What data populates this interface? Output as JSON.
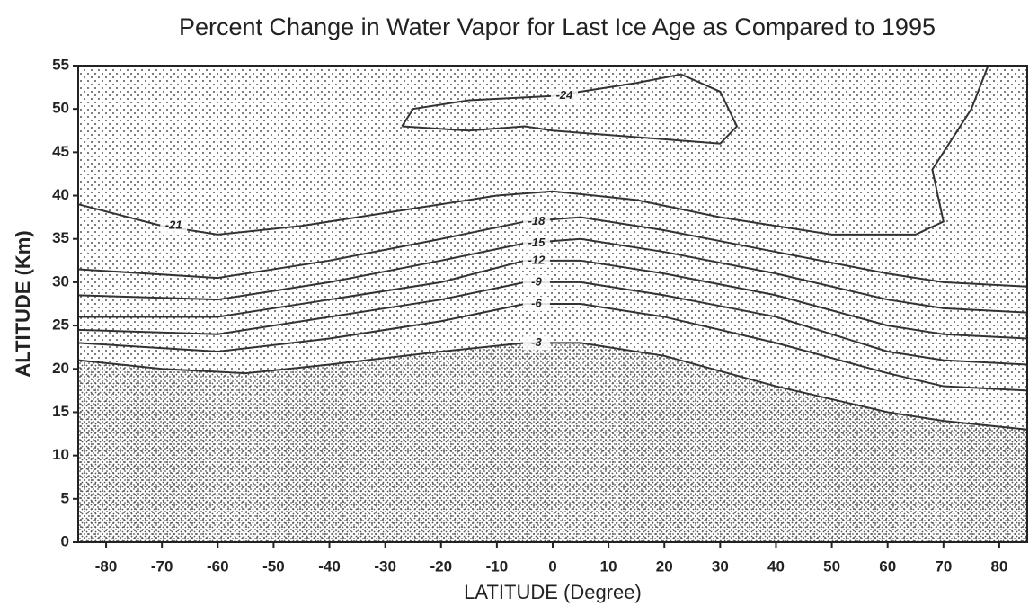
{
  "chart_data": {
    "type": "contour",
    "title": "Percent Change in Water Vapor for Last Ice Age as Compared to 1995",
    "xlabel": "LATITUDE (Degree)",
    "ylabel": "ALTITUDE (Km)",
    "xlim": [
      -85,
      85
    ],
    "xticks": [
      -80,
      -70,
      -60,
      -50,
      -40,
      -30,
      -20,
      -10,
      0,
      10,
      20,
      30,
      40,
      50,
      60,
      70,
      80
    ],
    "ylim": [
      0,
      55
    ],
    "yticks": [
      0,
      5,
      10,
      15,
      20,
      25,
      30,
      35,
      40,
      45,
      50,
      55
    ],
    "color": "#333333",
    "contours": [
      {
        "level": -3,
        "x": [
          -85,
          -70,
          -55,
          -40,
          -20,
          -5,
          5,
          20,
          40,
          60,
          70,
          85
        ],
        "y": [
          21,
          20,
          19.5,
          20.5,
          22,
          23,
          23,
          21.5,
          18,
          15,
          14,
          13
        ]
      },
      {
        "level": -6,
        "x": [
          -85,
          -60,
          -40,
          -20,
          -5,
          5,
          20,
          40,
          60,
          70,
          85
        ],
        "y": [
          23,
          22,
          23.5,
          25.5,
          27.5,
          27.5,
          26,
          23,
          19.5,
          18,
          17.5
        ]
      },
      {
        "level": -9,
        "x": [
          -85,
          -60,
          -40,
          -20,
          -5,
          5,
          20,
          40,
          60,
          70,
          85
        ],
        "y": [
          24.5,
          24,
          26,
          28,
          30,
          30,
          28.5,
          26,
          22,
          21,
          20.5
        ]
      },
      {
        "level": -12,
        "x": [
          -85,
          -60,
          -40,
          -20,
          -5,
          5,
          20,
          40,
          60,
          70,
          85
        ],
        "y": [
          26,
          26,
          28,
          30,
          32.5,
          32.5,
          31,
          28.5,
          25,
          24,
          23.5
        ]
      },
      {
        "level": -15,
        "x": [
          -85,
          -60,
          -40,
          -20,
          -5,
          5,
          20,
          40,
          60,
          70,
          85
        ],
        "y": [
          28.5,
          28,
          30,
          32.5,
          34.5,
          35,
          33.5,
          31,
          28,
          27,
          26.5
        ]
      },
      {
        "level": -18,
        "x": [
          -85,
          -60,
          -40,
          -20,
          -5,
          5,
          20,
          40,
          60,
          70,
          85
        ],
        "y": [
          31.5,
          30.5,
          32.5,
          35,
          37,
          37.5,
          36,
          33.5,
          31,
          30,
          29.5
        ]
      },
      {
        "level": -21,
        "x": [
          -85,
          -70,
          -60,
          -45,
          -25,
          -10,
          0,
          15,
          30,
          50,
          65,
          70,
          69,
          68,
          72,
          75,
          78
        ],
        "y": [
          39,
          36.5,
          35.5,
          36.5,
          38.5,
          40,
          40.5,
          39.5,
          37.5,
          35.5,
          35.5,
          37,
          40,
          43,
          47,
          50,
          55
        ]
      },
      {
        "level": -24,
        "x": [
          -27,
          -25,
          -15,
          0,
          15,
          23,
          30,
          33,
          30,
          20,
          0,
          -5,
          -15,
          -27
        ],
        "y": [
          48,
          50,
          51,
          51.5,
          53,
          54,
          52,
          48,
          46,
          46.5,
          47.5,
          48,
          47.5,
          48
        ]
      }
    ]
  }
}
